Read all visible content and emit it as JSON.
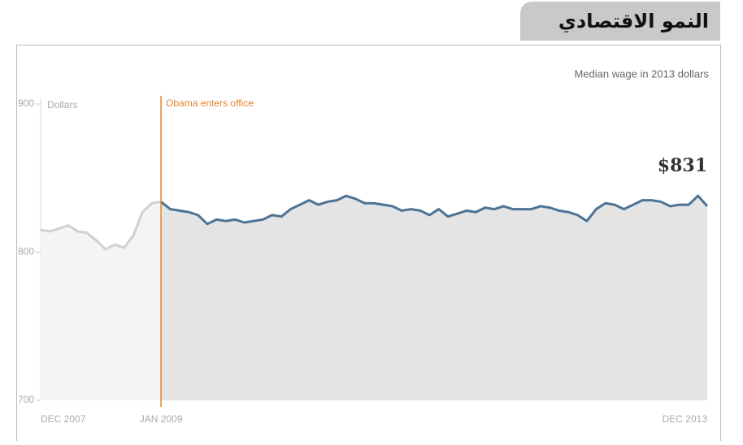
{
  "header": {
    "title": "النمو الاقتصادي"
  },
  "chart_data": {
    "type": "line",
    "subtitle": "Median wage in 2013 dollars",
    "ylabel": "Dollars",
    "annotation": {
      "text": "Obama enters office",
      "at": "JAN 2009"
    },
    "categories": [
      "DEC 2007",
      null,
      null,
      null,
      null,
      null,
      null,
      null,
      null,
      null,
      null,
      null,
      null,
      "JAN 2009",
      null,
      null,
      null,
      null,
      null,
      null,
      null,
      null,
      null,
      null,
      null,
      null,
      null,
      null,
      null,
      null,
      null,
      null,
      null,
      null,
      null,
      null,
      null,
      null,
      null,
      null,
      null,
      null,
      null,
      null,
      null,
      null,
      null,
      null,
      null,
      null,
      null,
      null,
      null,
      null,
      null,
      null,
      null,
      null,
      null,
      null,
      null,
      null,
      null,
      null,
      null,
      null,
      null,
      null,
      null,
      null,
      null,
      null,
      "DEC 2013"
    ],
    "values": [
      815,
      814,
      816,
      818,
      814,
      813,
      808,
      802,
      805,
      803,
      811,
      827,
      833,
      834,
      829,
      828,
      827,
      825,
      819,
      822,
      821,
      822,
      820,
      821,
      822,
      825,
      824,
      829,
      832,
      835,
      832,
      834,
      835,
      838,
      836,
      833,
      833,
      832,
      831,
      828,
      829,
      828,
      825,
      829,
      824,
      826,
      828,
      827,
      830,
      829,
      831,
      829,
      829,
      829,
      831,
      830,
      828,
      827,
      825,
      821,
      829,
      833,
      832,
      829,
      832,
      835,
      835,
      834,
      831,
      832,
      832,
      838,
      831
    ],
    "value_labels": [
      null,
      null,
      null,
      null,
      null,
      null,
      null,
      null,
      null,
      null,
      null,
      null,
      null,
      null,
      null,
      null,
      null,
      null,
      null,
      null,
      null,
      null,
      null,
      null,
      null,
      null,
      null,
      null,
      null,
      null,
      null,
      null,
      null,
      null,
      null,
      null,
      null,
      null,
      null,
      null,
      null,
      null,
      null,
      null,
      null,
      null,
      null,
      null,
      null,
      null,
      null,
      null,
      null,
      null,
      null,
      null,
      null,
      null,
      null,
      null,
      null,
      null,
      null,
      null,
      null,
      null,
      null,
      null,
      null,
      null,
      null,
      null,
      "$831"
    ],
    "color": "#4d7394",
    "before_color": "#d0d0d0",
    "annotation_color": "#e0862f",
    "ylim": [
      700,
      900
    ],
    "yticks": [
      700,
      800,
      900
    ]
  }
}
